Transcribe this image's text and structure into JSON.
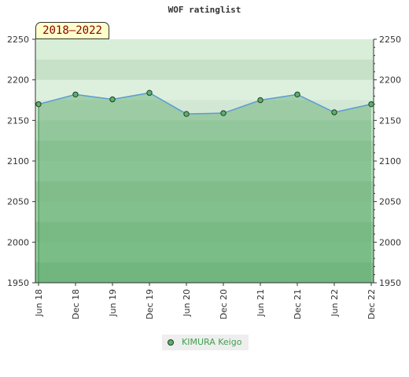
{
  "chart_data": {
    "type": "line",
    "title": "WOF ratinglist",
    "period": "2018–2022",
    "categories": [
      "Jun 18",
      "Dec 18",
      "Jun 19",
      "Dec 19",
      "Jun 20",
      "Dec 20",
      "Jun 21",
      "Dec 21",
      "Jun 22",
      "Dec 22"
    ],
    "series": [
      {
        "name": "KIMURA Keigo",
        "values": [
          2170,
          2182,
          2176,
          2184,
          2158,
          2159,
          2175,
          2182,
          2160,
          2170
        ]
      }
    ],
    "ylim": [
      1950,
      2250
    ],
    "yticks": [
      1950,
      2000,
      2050,
      2100,
      2150,
      2200,
      2250
    ],
    "xlabel": "",
    "ylabel": "",
    "legend": "bottom-center",
    "colors": {
      "line": "#5b9bd5",
      "marker_fill": "#5eb06e",
      "marker_stroke": "#1e3e1e",
      "area_fill": "#5aa86a",
      "band_top": "#d8eed8",
      "band_bottom": "#8ecb99"
    }
  }
}
